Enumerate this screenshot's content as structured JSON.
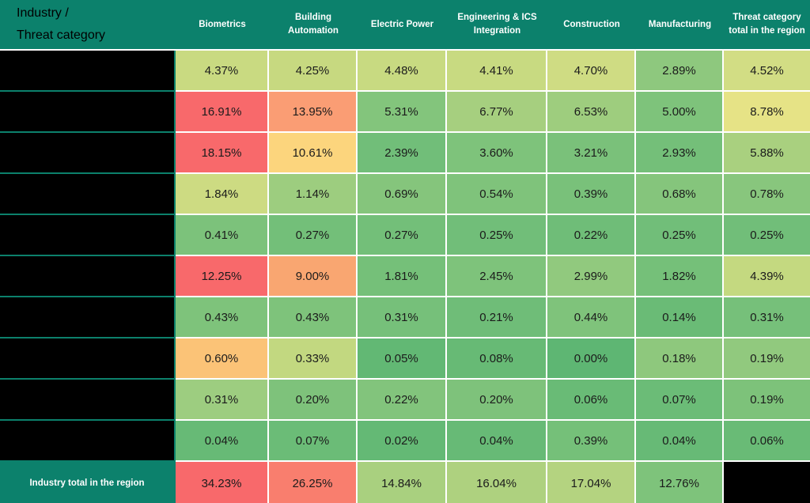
{
  "header": {
    "corner_line1": "Industry /",
    "corner_line2": "Threat category",
    "columns": [
      "Biometrics",
      "Building Automation",
      "Electric Power",
      "Engineering & ICS Integration",
      "Construction",
      "Manufacturing",
      "Threat category total in the region"
    ]
  },
  "rows": [
    {
      "label_redacted": true,
      "cells": [
        {
          "text": "4.37%",
          "bg": "#c9da81"
        },
        {
          "text": "4.25%",
          "bg": "#c7d980"
        },
        {
          "text": "4.48%",
          "bg": "#c8da81"
        },
        {
          "text": "4.41%",
          "bg": "#c8da81"
        },
        {
          "text": "4.70%",
          "bg": "#cfdc83"
        },
        {
          "text": "2.89%",
          "bg": "#8ec87e"
        },
        {
          "text": "4.52%",
          "bg": "#d2dd84"
        }
      ]
    },
    {
      "label_redacted": true,
      "cells": [
        {
          "text": "16.91%",
          "bg": "#f8696b"
        },
        {
          "text": "13.95%",
          "bg": "#fa9d74"
        },
        {
          "text": "5.31%",
          "bg": "#83c57c"
        },
        {
          "text": "6.77%",
          "bg": "#a6cf7f"
        },
        {
          "text": "6.53%",
          "bg": "#9ecd7e"
        },
        {
          "text": "5.00%",
          "bg": "#7ec37b"
        },
        {
          "text": "8.78%",
          "bg": "#e6e386"
        }
      ]
    },
    {
      "label_redacted": true,
      "cells": [
        {
          "text": "18.15%",
          "bg": "#f8696b"
        },
        {
          "text": "10.61%",
          "bg": "#fcd57d"
        },
        {
          "text": "2.39%",
          "bg": "#71be79"
        },
        {
          "text": "3.60%",
          "bg": "#7ec37b"
        },
        {
          "text": "3.21%",
          "bg": "#7ac17a"
        },
        {
          "text": "2.93%",
          "bg": "#74bf79"
        },
        {
          "text": "5.88%",
          "bg": "#a9d07f"
        }
      ]
    },
    {
      "label_redacted": true,
      "cells": [
        {
          "text": "1.84%",
          "bg": "#cddb82"
        },
        {
          "text": "1.14%",
          "bg": "#9dcd7f"
        },
        {
          "text": "0.69%",
          "bg": "#85c57c"
        },
        {
          "text": "0.54%",
          "bg": "#7fc37b"
        },
        {
          "text": "0.39%",
          "bg": "#79c17a"
        },
        {
          "text": "0.68%",
          "bg": "#85c57c"
        },
        {
          "text": "0.78%",
          "bg": "#88c67d"
        }
      ]
    },
    {
      "label_redacted": true,
      "cells": [
        {
          "text": "0.41%",
          "bg": "#7cc27b"
        },
        {
          "text": "0.27%",
          "bg": "#73bf79"
        },
        {
          "text": "0.27%",
          "bg": "#73bf79"
        },
        {
          "text": "0.25%",
          "bg": "#71be79"
        },
        {
          "text": "0.22%",
          "bg": "#6fbd78"
        },
        {
          "text": "0.25%",
          "bg": "#71be79"
        },
        {
          "text": "0.25%",
          "bg": "#71be79"
        }
      ]
    },
    {
      "label_redacted": true,
      "cells": [
        {
          "text": "12.25%",
          "bg": "#f8696b"
        },
        {
          "text": "9.00%",
          "bg": "#f9a671"
        },
        {
          "text": "1.81%",
          "bg": "#75c079"
        },
        {
          "text": "2.45%",
          "bg": "#7ec37b"
        },
        {
          "text": "2.99%",
          "bg": "#91c97e"
        },
        {
          "text": "1.82%",
          "bg": "#75c079"
        },
        {
          "text": "4.39%",
          "bg": "#c4d980"
        }
      ]
    },
    {
      "label_redacted": true,
      "cells": [
        {
          "text": "0.43%",
          "bg": "#7ec37b"
        },
        {
          "text": "0.43%",
          "bg": "#7ec37b"
        },
        {
          "text": "0.31%",
          "bg": "#76c07a"
        },
        {
          "text": "0.21%",
          "bg": "#6fbd78"
        },
        {
          "text": "0.44%",
          "bg": "#7fc37b"
        },
        {
          "text": "0.14%",
          "bg": "#6abb76"
        },
        {
          "text": "0.31%",
          "bg": "#76c07a"
        }
      ]
    },
    {
      "label_redacted": true,
      "cells": [
        {
          "text": "0.60%",
          "bg": "#fbc377"
        },
        {
          "text": "0.33%",
          "bg": "#c2d880"
        },
        {
          "text": "0.05%",
          "bg": "#62b874"
        },
        {
          "text": "0.08%",
          "bg": "#67ba75"
        },
        {
          "text": "0.00%",
          "bg": "#5eb673"
        },
        {
          "text": "0.18%",
          "bg": "#8ec87d"
        },
        {
          "text": "0.19%",
          "bg": "#91c97e"
        }
      ]
    },
    {
      "label_redacted": true,
      "cells": [
        {
          "text": "0.31%",
          "bg": "#9dcd80"
        },
        {
          "text": "0.20%",
          "bg": "#7ec27b"
        },
        {
          "text": "0.22%",
          "bg": "#82c47c"
        },
        {
          "text": "0.20%",
          "bg": "#7ec27b"
        },
        {
          "text": "0.06%",
          "bg": "#69bb76"
        },
        {
          "text": "0.07%",
          "bg": "#6bbc77"
        },
        {
          "text": "0.19%",
          "bg": "#7dc27a"
        }
      ]
    },
    {
      "label_redacted": true,
      "cells": [
        {
          "text": "0.04%",
          "bg": "#67ba76"
        },
        {
          "text": "0.07%",
          "bg": "#6bbc77"
        },
        {
          "text": "0.02%",
          "bg": "#64b975"
        },
        {
          "text": "0.04%",
          "bg": "#67ba76"
        },
        {
          "text": "0.39%",
          "bg": "#75c079"
        },
        {
          "text": "0.04%",
          "bg": "#67ba76"
        },
        {
          "text": "0.06%",
          "bg": "#69bb76"
        }
      ]
    }
  ],
  "total_row": {
    "label": "Industry total in the region",
    "cells": [
      {
        "text": "34.23%",
        "bg": "#f8696b"
      },
      {
        "text": "26.25%",
        "bg": "#f97e6e"
      },
      {
        "text": "14.84%",
        "bg": "#a9d07f"
      },
      {
        "text": "16.04%",
        "bg": "#aed17f"
      },
      {
        "text": "17.04%",
        "bg": "#b4d380"
      },
      {
        "text": "12.76%",
        "bg": "#7ec37b"
      }
    ],
    "last_cell_redacted": true
  },
  "colors": {
    "header_bg": "#0c816c",
    "header_text": "#ffffff",
    "gridline": "#ffffff",
    "redacted_bg": "#000000",
    "cell_text": "#1b1b1b",
    "scale_low": "#63be7b",
    "scale_mid": "#ffeb84",
    "scale_high": "#f8696b"
  },
  "chart_data": {
    "type": "heatmap",
    "title": "",
    "columns": [
      "Biometrics",
      "Building Automation",
      "Electric Power",
      "Engineering & ICS Integration",
      "Construction",
      "Manufacturing",
      "Threat category total in the region"
    ],
    "row_labels": [
      "",
      "",
      "",
      "",
      "",
      "",
      "",
      "",
      "",
      "",
      "Industry total in the region"
    ],
    "row_labels_redacted": true,
    "corner_label": "Industry / Threat category",
    "values_percent": [
      [
        4.37,
        4.25,
        4.48,
        4.41,
        4.7,
        2.89,
        4.52
      ],
      [
        16.91,
        13.95,
        5.31,
        6.77,
        6.53,
        5.0,
        8.78
      ],
      [
        18.15,
        10.61,
        2.39,
        3.6,
        3.21,
        2.93,
        5.88
      ],
      [
        1.84,
        1.14,
        0.69,
        0.54,
        0.39,
        0.68,
        0.78
      ],
      [
        0.41,
        0.27,
        0.27,
        0.25,
        0.22,
        0.25,
        0.25
      ],
      [
        12.25,
        9.0,
        1.81,
        2.45,
        2.99,
        1.82,
        4.39
      ],
      [
        0.43,
        0.43,
        0.31,
        0.21,
        0.44,
        0.14,
        0.31
      ],
      [
        0.6,
        0.33,
        0.05,
        0.08,
        0.0,
        0.18,
        0.19
      ],
      [
        0.31,
        0.2,
        0.22,
        0.2,
        0.06,
        0.07,
        0.19
      ],
      [
        0.04,
        0.07,
        0.02,
        0.04,
        0.39,
        0.04,
        0.06
      ],
      [
        34.23,
        26.25,
        14.84,
        16.04,
        17.04,
        12.76,
        null
      ]
    ],
    "color_scale": {
      "low": "#63be7b",
      "mid": "#ffeb84",
      "high": "#f8696b"
    },
    "legend_position": "none",
    "grid": true
  }
}
